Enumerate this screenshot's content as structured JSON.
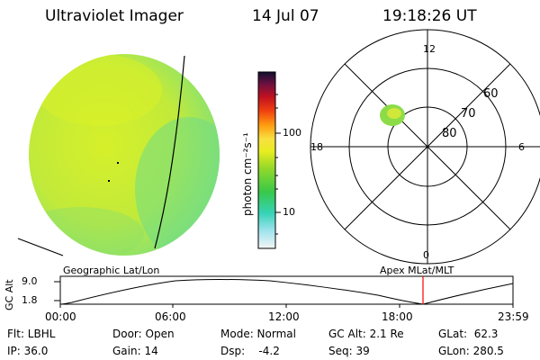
{
  "header": {
    "title": "Ultraviolet Imager",
    "date": "14 Jul 07",
    "time": "19:18:26 UT"
  },
  "colorbar": {
    "unit_label": "photon cm⁻²s⁻¹",
    "ticks": [
      "100",
      "10"
    ]
  },
  "polar": {
    "mlt_labels": [
      "12",
      "18",
      "6",
      "0"
    ],
    "lat_labels": [
      "60",
      "70",
      "80"
    ]
  },
  "labels": {
    "geographic": "Geographic Lat/Lon",
    "apex": "Apex MLat/MLT"
  },
  "altitude_plot": {
    "ylabel": "GC Alt",
    "y_ticks": [
      "9.0",
      "1.8"
    ],
    "x_ticks": [
      "00:00",
      "06:00",
      "12:00",
      "18:00",
      "23:59"
    ],
    "line_color": "#000000",
    "marker_color": "#ff0000"
  },
  "footer": {
    "flt": "Flt: LBHL",
    "ip": "IP: 36.0",
    "door": "Door: Open",
    "gain": "Gain: 14",
    "mode": "Mode: Normal",
    "dsp": "Dsp:    -4.2",
    "gcalt": "GC Alt: 2.1 Re",
    "seq": "Seq: 39",
    "glat": "GLat:  62.3",
    "glon": "GLon: 280.5"
  }
}
